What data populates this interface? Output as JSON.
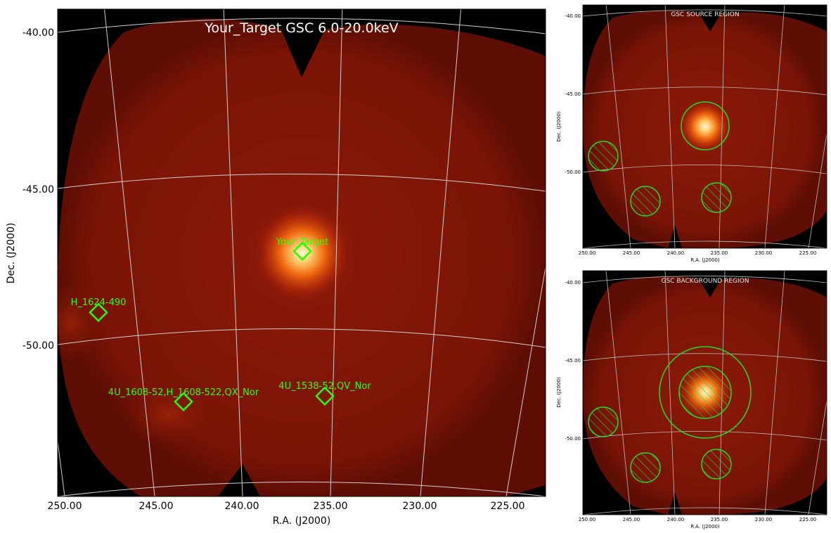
{
  "main": {
    "title": "Your_Target GSC 6.0-20.0keV",
    "xlabel": "R.A. (J2000)",
    "ylabel": "Dec. (J2000)",
    "ra_ticks": [
      "250.00",
      "245.00",
      "240.00",
      "235.00",
      "230.00",
      "225.00"
    ],
    "dec_ticks": [
      "-40.00",
      "-45.00",
      "-50.00"
    ],
    "sources": [
      {
        "name": "Your_Target"
      },
      {
        "name": "H_1624-490"
      },
      {
        "name": "4U_1608-52,H_1608-522,QX_Nor"
      },
      {
        "name": "4U_1538-52,QV_Nor"
      }
    ],
    "marker_color": "#22ff00"
  },
  "source_panel": {
    "title": "GSC SOURCE REGION",
    "xlabel": "R.A. (J2000)",
    "ylabel": "Dec. (J2000)",
    "ra_ticks": [
      "250.00",
      "245.00",
      "240.00",
      "235.00",
      "230.00",
      "225.00"
    ],
    "dec_ticks": [
      "-40.00",
      "-45.00",
      "-50.00"
    ]
  },
  "background_panel": {
    "title": "GSC BACKGROUND REGION",
    "xlabel": "R.A. (J2000)",
    "ylabel": "Dec. (J2000)",
    "ra_ticks": [
      "250.00",
      "245.00",
      "240.00",
      "235.00",
      "230.00",
      "225.00"
    ],
    "dec_ticks": [
      "-40.00",
      "-45.00",
      "-50.00"
    ]
  },
  "colors": {
    "sky_background": "#000000",
    "diffuse": "#7a1206",
    "source_core": "#fff4d0",
    "region": "#22dd22",
    "grid": "#d8d8d8"
  }
}
